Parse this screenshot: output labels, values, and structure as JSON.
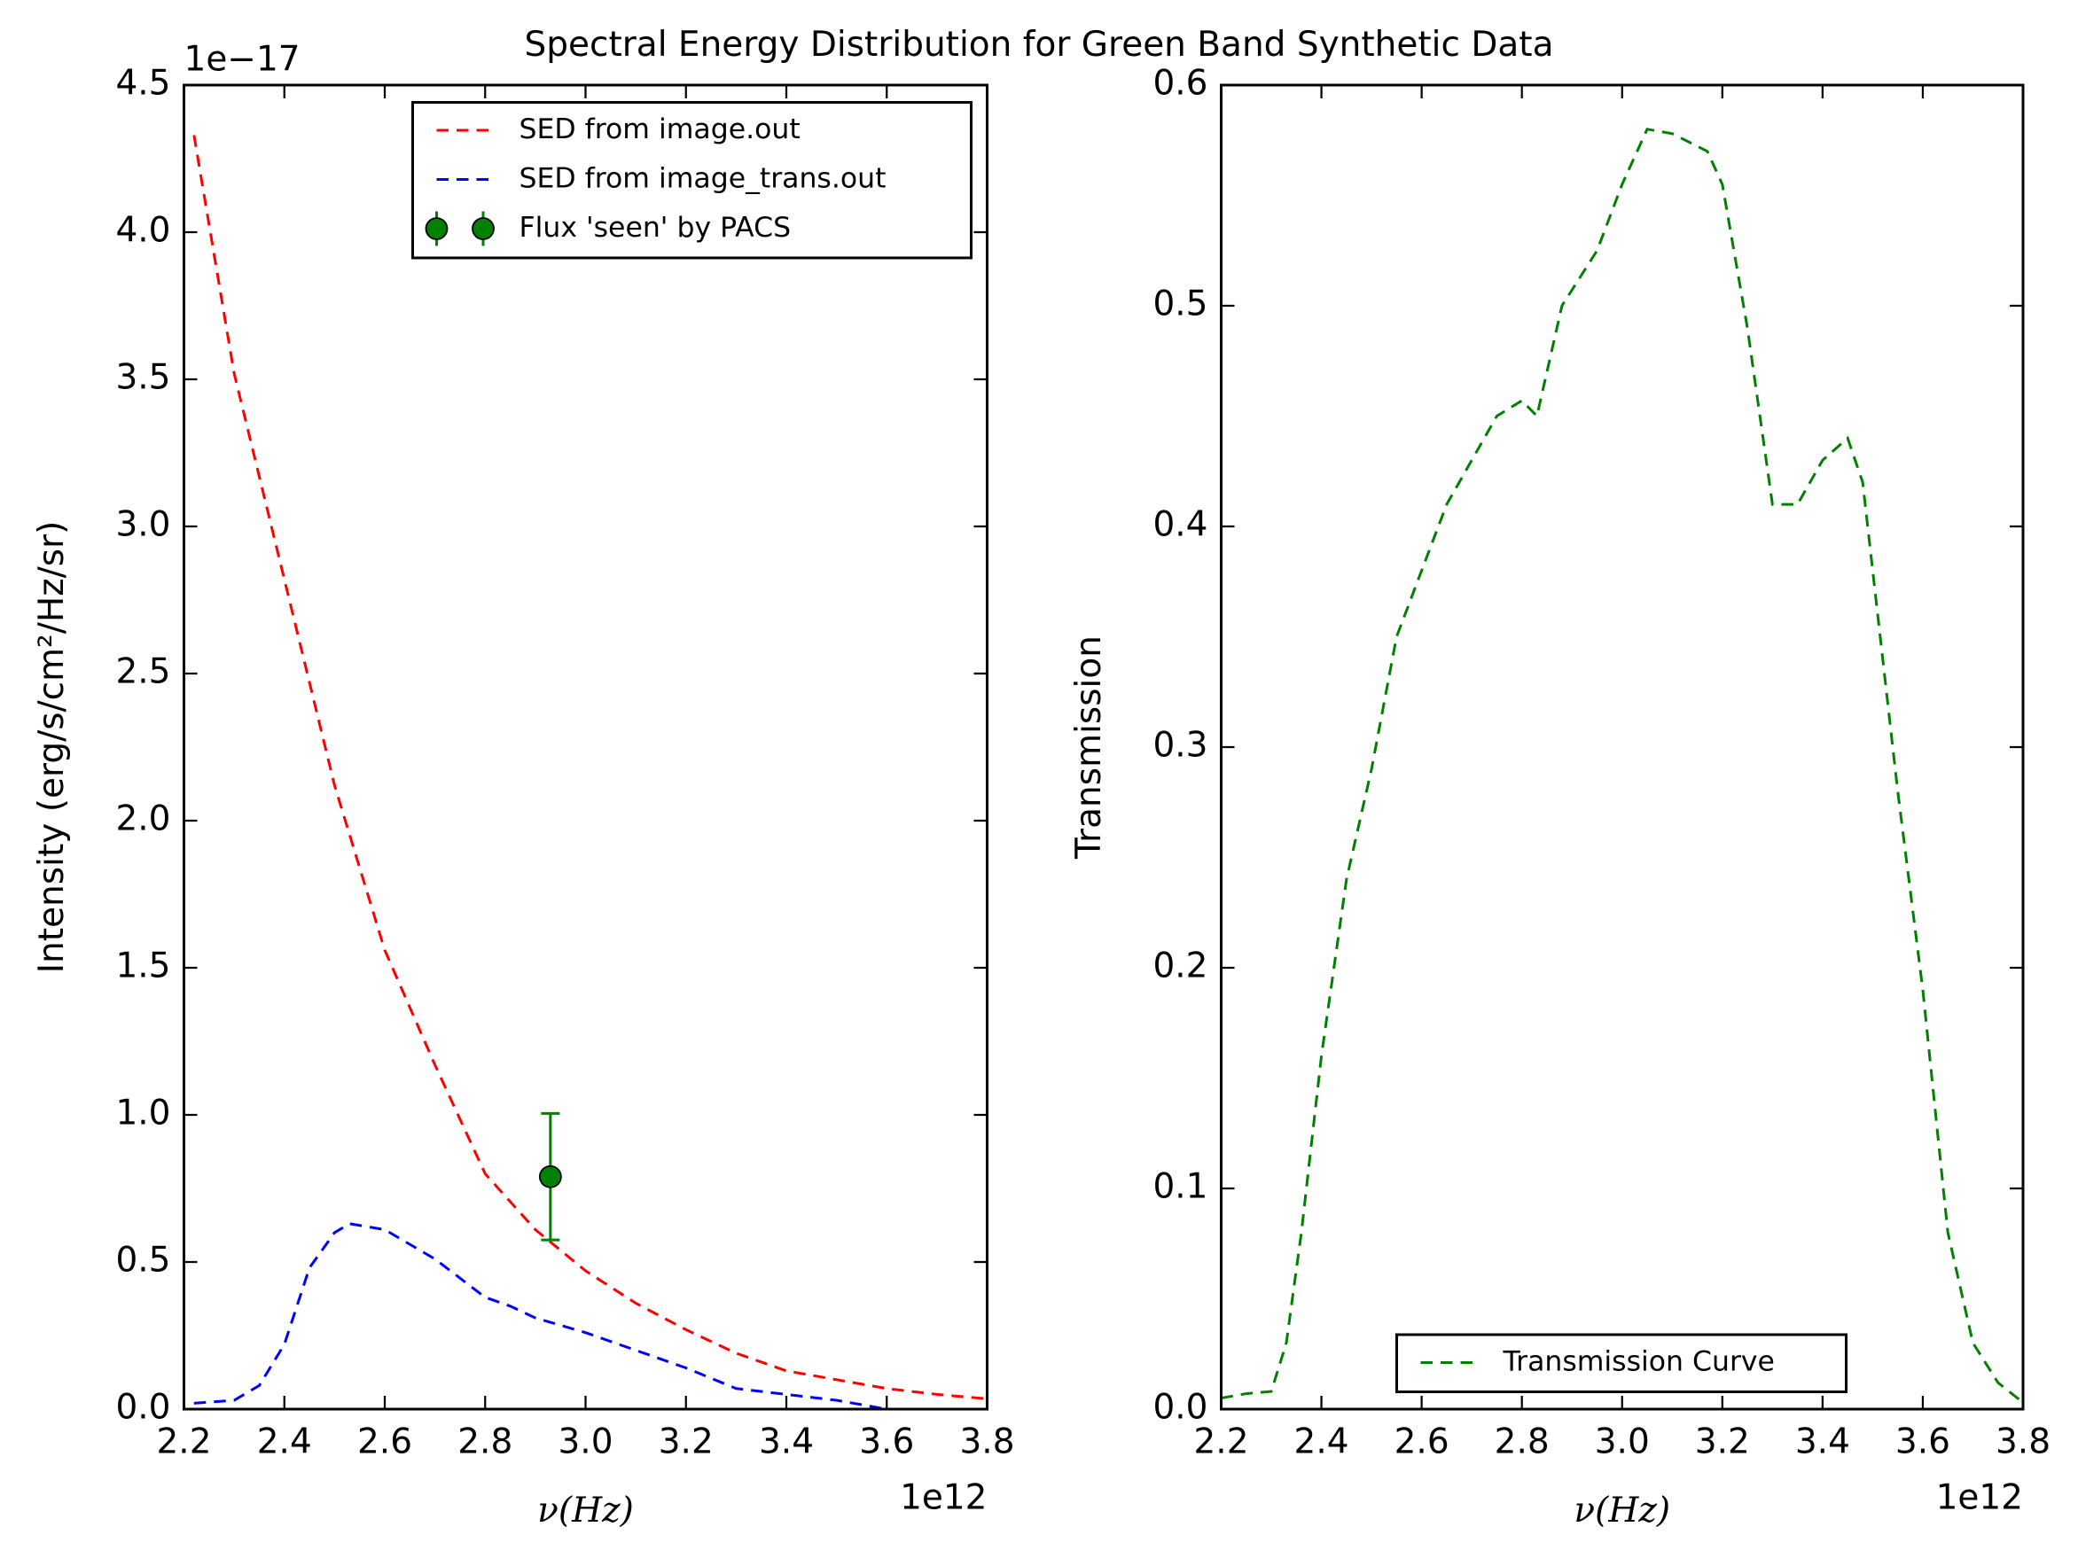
{
  "title": "Spectral Energy Distribution for Green Band Synthetic Data",
  "chart_data": [
    {
      "type": "line",
      "xlabel": "ν(Hz)",
      "ylabel": "Intensity (erg/s/cm²/Hz/sr)",
      "x_offset_label": "1e12",
      "y_offset_label": "1e−17",
      "xlim": [
        2.2,
        3.8
      ],
      "ylim": [
        0,
        4.5
      ],
      "xticks": [
        2.2,
        2.4,
        2.6,
        2.8,
        {
          "value": 3,
          "label": "3.0"
        },
        3.2,
        3.4,
        3.6,
        3.8
      ],
      "yticks": [
        {
          "value": 0,
          "label": "0.0"
        },
        0.5,
        {
          "value": 1,
          "label": "1.0"
        },
        1.5,
        {
          "value": 2,
          "label": "2.0"
        },
        2.5,
        {
          "value": 3,
          "label": "3.0"
        },
        3.5,
        {
          "value": 4,
          "label": "4.0"
        },
        4.5
      ],
      "legend": "upper right",
      "series": [
        {
          "name": "SED from image.out",
          "color": "#ff0000",
          "style": "dashed",
          "x": [
            2.22,
            2.3,
            2.4,
            2.5,
            2.6,
            2.7,
            2.8,
            2.9,
            3.0,
            3.1,
            3.2,
            3.3,
            3.4,
            3.5,
            3.6,
            3.7,
            3.8
          ],
          "values": [
            4.33,
            3.52,
            2.82,
            2.12,
            1.56,
            1.17,
            0.8,
            0.61,
            0.47,
            0.36,
            0.27,
            0.19,
            0.13,
            0.1,
            0.07,
            0.05,
            0.035
          ]
        },
        {
          "name": "SED from image_trans.out",
          "color": "#0000ff",
          "style": "dashed",
          "x": [
            2.22,
            2.3,
            2.35,
            2.4,
            2.45,
            2.5,
            2.53,
            2.6,
            2.7,
            2.8,
            2.85,
            2.9,
            3.0,
            3.1,
            3.2,
            3.3,
            3.4,
            3.5,
            3.6,
            3.7
          ],
          "values": [
            0.02,
            0.03,
            0.08,
            0.22,
            0.48,
            0.6,
            0.63,
            0.61,
            0.51,
            0.38,
            0.35,
            0.31,
            0.26,
            0.2,
            0.14,
            0.07,
            0.05,
            0.03,
            0.0,
            0.0
          ]
        },
        {
          "name": "Flux 'seen' by PACS",
          "color": "#008000",
          "style": "none",
          "marker": "o",
          "x": [
            2.93
          ],
          "values": [
            0.79
          ],
          "errors": [
            0.215
          ]
        }
      ]
    },
    {
      "type": "line",
      "xlabel": "ν(Hz)",
      "ylabel": "Transmission",
      "x_offset_label": "1e12",
      "xlim": [
        2.2,
        3.8
      ],
      "ylim": [
        0,
        0.6
      ],
      "xticks": [
        2.2,
        2.4,
        2.6,
        2.8,
        {
          "value": 3,
          "label": "3.0"
        },
        3.2,
        3.4,
        3.6,
        3.8
      ],
      "yticks": [
        {
          "value": 0,
          "label": "0.0"
        },
        0.1,
        0.2,
        0.3,
        0.4,
        0.5,
        0.6
      ],
      "legend": "lower center",
      "series": [
        {
          "name": "Transmission Curve",
          "color": "#008000",
          "style": "dashed",
          "x": [
            2.2,
            2.25,
            2.3,
            2.33,
            2.36,
            2.4,
            2.45,
            2.5,
            2.55,
            2.6,
            2.65,
            2.7,
            2.75,
            2.8,
            2.83,
            2.88,
            2.95,
            3.0,
            3.05,
            3.1,
            3.17,
            3.2,
            3.25,
            3.3,
            3.35,
            3.4,
            3.45,
            3.48,
            3.55,
            3.6,
            3.65,
            3.7,
            3.75,
            3.8
          ],
          "values": [
            0.005,
            0.007,
            0.008,
            0.03,
            0.08,
            0.16,
            0.24,
            0.29,
            0.35,
            0.38,
            0.41,
            0.43,
            0.45,
            0.457,
            0.45,
            0.5,
            0.525,
            0.555,
            0.58,
            0.578,
            0.57,
            0.555,
            0.49,
            0.41,
            0.41,
            0.43,
            0.44,
            0.42,
            0.28,
            0.19,
            0.08,
            0.03,
            0.012,
            0.003
          ]
        }
      ]
    }
  ]
}
